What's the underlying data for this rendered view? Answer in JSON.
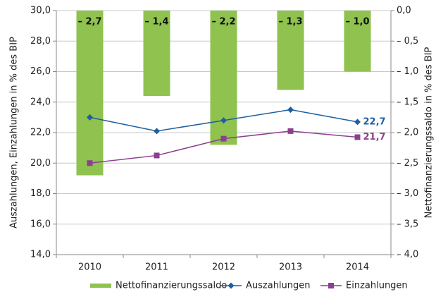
{
  "chart_data": {
    "type": "bar",
    "categories": [
      "2010",
      "2011",
      "2012",
      "2013",
      "2014"
    ],
    "ylabel": "Auszahlungen, Einzahlungen in % des BIP",
    "y2label": "Nettofinanzierungssaldo in % des BIP",
    "ylim": [
      14,
      30
    ],
    "yticks": [
      {
        "value": 14,
        "label": "14,0"
      },
      {
        "value": 16,
        "label": "16,0"
      },
      {
        "value": 18,
        "label": "18,0"
      },
      {
        "value": 20,
        "label": "20,0"
      },
      {
        "value": 22,
        "label": "22,0"
      },
      {
        "value": 24,
        "label": "24,0"
      },
      {
        "value": 26,
        "label": "26,0"
      },
      {
        "value": 28,
        "label": "28,0"
      },
      {
        "value": 30,
        "label": "30,0"
      }
    ],
    "y2lim": [
      -4,
      0
    ],
    "y2ticks": [
      {
        "value": -4,
        "label": "– 4,0"
      },
      {
        "value": -3.5,
        "label": "– 3,5"
      },
      {
        "value": -3,
        "label": "– 3,0"
      },
      {
        "value": -2.5,
        "label": "– 2,5"
      },
      {
        "value": -2,
        "label": "– 2,0"
      },
      {
        "value": -1.5,
        "label": "– 1,5"
      },
      {
        "value": -1,
        "label": "– 1,0"
      },
      {
        "value": -0.5,
        "label": "– 0,5"
      },
      {
        "value": 0,
        "label": "0,0"
      }
    ],
    "grid": true,
    "legend": "bottom",
    "series": [
      {
        "name": "Nettofinanzierungssaldo",
        "type": "bar",
        "axis": "y2",
        "color": "#8fc24f",
        "values": [
          -2.7,
          -1.4,
          -2.2,
          -1.3,
          -1.0
        ],
        "value_labels": [
          "– 2,7",
          "– 1,4",
          "– 2,2",
          "– 1,3",
          "– 1,0"
        ]
      },
      {
        "name": "Auszahlungen",
        "type": "line",
        "marker": "diamond",
        "color": "#1f5f9f",
        "values": [
          23.0,
          22.1,
          22.8,
          23.5,
          22.7
        ],
        "value_labels": [
          null,
          null,
          null,
          null,
          "22,7"
        ]
      },
      {
        "name": "Einzahlungen",
        "type": "line",
        "marker": "square",
        "color": "#8c3f8f",
        "values": [
          20.0,
          20.5,
          21.6,
          22.1,
          21.7
        ],
        "value_labels": [
          null,
          null,
          null,
          null,
          "21,7"
        ]
      }
    ]
  }
}
